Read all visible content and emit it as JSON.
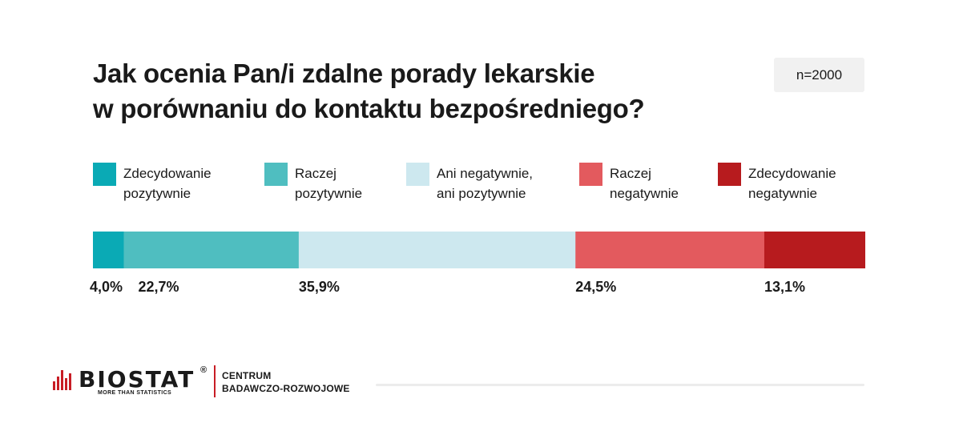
{
  "title": {
    "line1": "Jak ocenia Pan/i zdalne porady lekarskie",
    "line2": "w porównaniu do kontaktu bezpośredniego?"
  },
  "sample_size": "n=2000",
  "chart_data": {
    "type": "bar",
    "stacked": true,
    "orientation": "horizontal",
    "categories": [
      "Zdecydowanie pozytywnie",
      "Raczej pozytywnie",
      "Ani negatywnie, ani pozytywnie",
      "Raczej negatywnie",
      "Zdecydowanie negatywnie"
    ],
    "values": [
      4.0,
      22.7,
      35.9,
      24.5,
      13.1
    ],
    "value_labels": [
      "4,0%",
      "22,7%",
      "35,9%",
      "24,5%",
      "13,1%"
    ],
    "colors": [
      "#0aaab5",
      "#4fbec0",
      "#cde8ef",
      "#e35a5e",
      "#b71b1e"
    ],
    "title": "Jak ocenia Pan/i zdalne porady lekarskie w porównaniu do kontaktu bezpośredniego?",
    "legend": [
      {
        "line1": "Zdecydowanie",
        "line2": "pozytywnie",
        "color": "#0aaab5"
      },
      {
        "line1": "Raczej",
        "line2": "pozytywnie",
        "color": "#4fbec0"
      },
      {
        "line1": "Ani negatywnie,",
        "line2": "ani pozytywnie",
        "color": "#cde8ef"
      },
      {
        "line1": "Raczej",
        "line2": "negatywnie",
        "color": "#e35a5e"
      },
      {
        "line1": "Zdecydowanie",
        "line2": "negatywnie",
        "color": "#b71b1e"
      }
    ],
    "legend_position": "top",
    "xlim": [
      0,
      100.2
    ],
    "grid": false
  },
  "footer": {
    "logo_name": "BIOSTAT",
    "logo_registered": "®",
    "logo_tagline": "MORE THAN STATISTICS",
    "department_line1": "CENTRUM",
    "department_line2": "BADAWCZO-ROZWOJOWE",
    "brand_color": "#c81d25"
  }
}
